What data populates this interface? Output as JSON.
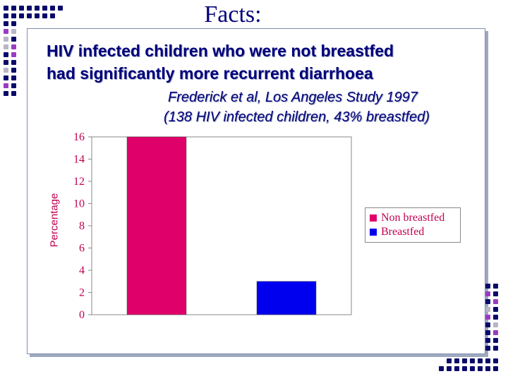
{
  "slide": {
    "title": "Facts:",
    "heading_line1": "HIV infected children who were not breastfed",
    "heading_line2": "had significantly more recurrent diarrhoea",
    "citation_line1": "Frederick et al, Los Angeles Study 1997",
    "citation_line2": "(138 HIV infected children, 43% breastfed)"
  },
  "colors": {
    "title": "#00007a",
    "axis_text": "#c00050",
    "non_breastfed": "#e0006a",
    "breastfed": "#0000ee",
    "deco_navy": "#0a0a6a",
    "deco_purple": "#9a3cc2",
    "deco_gray": "#b6b6c6"
  },
  "chart_data": {
    "type": "bar",
    "ylabel": "Percentage",
    "ylim": [
      0,
      16
    ],
    "yticks": [
      0,
      2,
      4,
      6,
      8,
      10,
      12,
      14,
      16
    ],
    "grid": false,
    "legend_position": "right",
    "series": [
      {
        "name": "Non breastfed",
        "values": [
          16
        ],
        "color": "#e0006a"
      },
      {
        "name": "Breastfed",
        "values": [
          3
        ],
        "color": "#0000ee"
      }
    ]
  }
}
